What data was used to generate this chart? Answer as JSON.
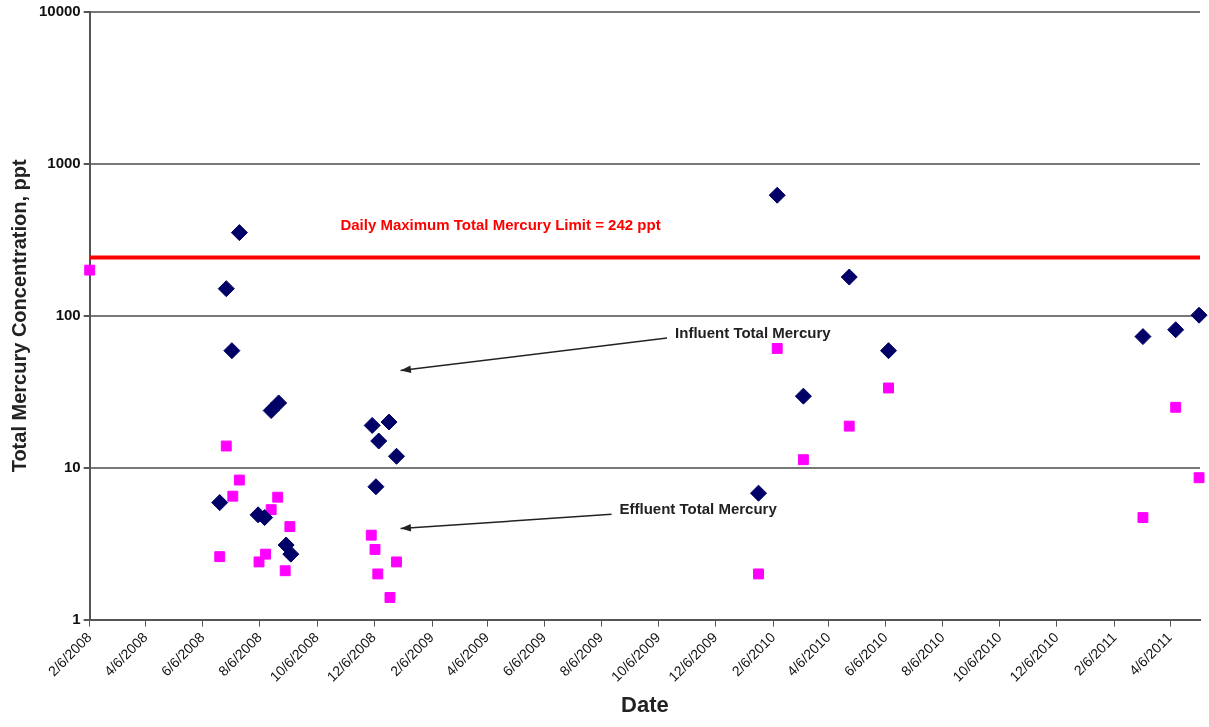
{
  "chart_data": {
    "type": "scatter",
    "xlabel": "Date",
    "ylabel": "Total Mercury Concentration, ppt",
    "log": "y",
    "grid": "y",
    "legend": false,
    "xlim": [
      "2008-02-06",
      "2011-05-08"
    ],
    "xticks": [
      {
        "value": "2008-02-06",
        "label": "2/6/2008"
      },
      {
        "value": "2008-04-06",
        "label": "4/6/2008"
      },
      {
        "value": "2008-06-06",
        "label": "6/6/2008"
      },
      {
        "value": "2008-08-06",
        "label": "8/6/2008"
      },
      {
        "value": "2008-10-06",
        "label": "10/6/2008"
      },
      {
        "value": "2008-12-06",
        "label": "12/6/2008"
      },
      {
        "value": "2009-02-06",
        "label": "2/6/2009"
      },
      {
        "value": "2009-04-06",
        "label": "4/6/2009"
      },
      {
        "value": "2009-06-06",
        "label": "6/6/2009"
      },
      {
        "value": "2009-08-06",
        "label": "8/6/2009"
      },
      {
        "value": "2009-10-06",
        "label": "10/6/2009"
      },
      {
        "value": "2009-12-06",
        "label": "12/6/2009"
      },
      {
        "value": "2010-02-06",
        "label": "2/6/2010"
      },
      {
        "value": "2010-04-06",
        "label": "4/6/2010"
      },
      {
        "value": "2010-06-06",
        "label": "6/6/2010"
      },
      {
        "value": "2010-08-06",
        "label": "8/6/2010"
      },
      {
        "value": "2010-10-06",
        "label": "10/6/2010"
      },
      {
        "value": "2010-12-06",
        "label": "12/6/2010"
      },
      {
        "value": "2011-02-06",
        "label": "2/6/2011"
      },
      {
        "value": "2011-04-06",
        "label": "4/6/2011"
      }
    ],
    "ylim": [
      1,
      10000
    ],
    "yticks": [
      1,
      10,
      100,
      1000,
      10000
    ],
    "ref_lines": [
      {
        "axis": "y",
        "value": 242,
        "label": "Daily Maximum Total Mercury Limit = 242 ppt",
        "color": "#ff0000"
      }
    ],
    "annotations": [
      "Influent Total Mercury",
      "Effluent Total Mercury"
    ],
    "series": [
      {
        "color": "#000066",
        "marker": "diamond",
        "x": [
          "2008-07-15",
          "2008-07-01",
          "2008-07-07",
          "2008-08-18",
          "2008-08-26",
          "2008-06-24",
          "2008-08-04",
          "2008-08-11",
          "2008-09-03",
          "2008-09-08",
          "2008-12-04",
          "2008-12-22",
          "2008-12-11",
          "2008-12-30",
          "2008-12-08",
          "2010-02-10",
          "2010-04-28",
          "2010-06-09",
          "2010-03-10",
          "2010-01-21",
          "2011-03-08",
          "2011-04-12",
          "2011-05-07"
        ],
        "values": [
          353,
          151,
          59,
          23.8,
          26.7,
          5.9,
          4.9,
          4.7,
          3.1,
          2.7,
          19,
          20,
          15,
          11.9,
          7.5,
          622,
          180,
          59,
          29.6,
          6.8,
          73,
          81,
          101
        ]
      },
      {
        "color": "#ff00ff",
        "marker": "square",
        "x": [
          "2008-02-06",
          "2008-07-01",
          "2008-07-15",
          "2008-07-08",
          "2008-06-24",
          "2008-08-05",
          "2008-08-12",
          "2008-08-18",
          "2008-08-25",
          "2008-09-07",
          "2008-09-02",
          "2008-12-03",
          "2008-12-07",
          "2008-12-10",
          "2008-12-23",
          "2008-12-30",
          "2010-02-10",
          "2010-04-28",
          "2010-06-09",
          "2010-03-10",
          "2010-01-21",
          "2011-04-12",
          "2011-03-08",
          "2011-05-07"
        ],
        "values": [
          200,
          13.9,
          8.3,
          6.5,
          2.6,
          2.4,
          2.7,
          5.3,
          6.4,
          4.1,
          2.1,
          3.6,
          2.9,
          2.0,
          1.4,
          2.4,
          61,
          18.8,
          33.5,
          11.3,
          2.0,
          25,
          4.7,
          8.6
        ]
      }
    ]
  }
}
